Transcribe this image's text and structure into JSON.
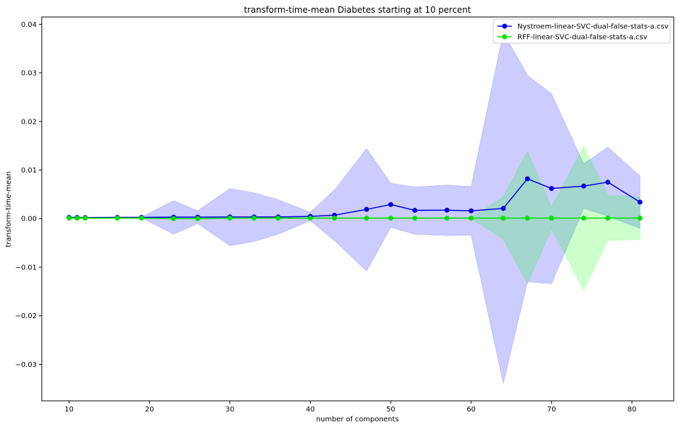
{
  "chart_data": {
    "type": "line",
    "title": "transform-time-mean Diabetes starting at 10 percent",
    "xlabel": "number of components",
    "ylabel": "transform-time-mean",
    "xlim": [
      6.6,
      85.2
    ],
    "ylim": [
      -0.0375,
      0.0415
    ],
    "xticks": [
      10,
      20,
      30,
      40,
      50,
      60,
      70,
      80
    ],
    "xtick_labels": [
      "10",
      "20",
      "30",
      "40",
      "50",
      "60",
      "70",
      "80"
    ],
    "yticks": [
      -0.03,
      -0.02,
      -0.01,
      0.0,
      0.01,
      0.02,
      0.03,
      0.04
    ],
    "ytick_labels": [
      "−0.03",
      "−0.02",
      "−0.01",
      "0.00",
      "0.01",
      "0.02",
      "0.03",
      "0.04"
    ],
    "grid": false,
    "legend_position": "top-right",
    "series": [
      {
        "name": "Nystroem-linear-SVC-dual-false-stats-a.csv",
        "color": "#0000e0",
        "band_color": "#0000ff",
        "x": [
          10,
          11,
          12,
          16,
          19,
          23,
          26,
          30,
          33,
          36,
          40,
          43,
          47,
          50,
          53,
          57,
          60,
          64,
          67,
          70,
          74,
          77,
          81
        ],
        "y": [
          0.00025,
          0.00025,
          0.00022,
          0.00025,
          0.00025,
          0.0003,
          0.0003,
          0.00035,
          0.00035,
          0.00035,
          0.00045,
          0.0007,
          0.0019,
          0.0029,
          0.0017,
          0.00175,
          0.0016,
          0.0021,
          0.0082,
          0.0062,
          0.0067,
          0.0075,
          0.0034
        ],
        "y_lower": [
          0.0002,
          0.0002,
          0.0002,
          0.0002,
          0.0002,
          -0.0032,
          -0.001,
          -0.0056,
          -0.0047,
          -0.0032,
          -0.0004,
          -0.0045,
          -0.0108,
          -0.0018,
          -0.0032,
          -0.0035,
          -0.0034,
          -0.0339,
          -0.013,
          -0.0134,
          0.0021,
          0.0005,
          -0.002
        ],
        "y_upper": [
          0.0003,
          0.0003,
          0.0003,
          0.0003,
          0.0003,
          0.0037,
          0.0016,
          0.0062,
          0.0053,
          0.0039,
          0.0013,
          0.0059,
          0.0144,
          0.0073,
          0.0065,
          0.0069,
          0.0066,
          0.0383,
          0.0295,
          0.0257,
          0.0113,
          0.0147,
          0.0088
        ]
      },
      {
        "name": "RFF-linear-SVC-dual-false-stats-a.csv",
        "color": "#00e000",
        "band_color": "#00ff00",
        "x": [
          10,
          11,
          12,
          16,
          19,
          23,
          26,
          30,
          33,
          36,
          40,
          43,
          47,
          50,
          53,
          57,
          60,
          64,
          67,
          70,
          74,
          77,
          81
        ],
        "y": [
          0.0001,
          0.0001,
          0.0001,
          0.0001,
          0.0001,
          0.0,
          0.0,
          0.0001,
          0.0001,
          0.0001,
          0.0001,
          0.0001,
          0.0001,
          0.0001,
          0.0001,
          0.0001,
          0.0001,
          0.0001,
          0.0001,
          0.0001,
          0.0001,
          0.0001,
          0.0001
        ],
        "y_lower": [
          0.0,
          0.0,
          0.0,
          0.0,
          0.0,
          -0.0001,
          -0.0001,
          0.0,
          0.0,
          0.0,
          0.0,
          0.0,
          0.0,
          0.0,
          0.0,
          0.0,
          0.0,
          -0.0042,
          -0.0134,
          -0.0021,
          -0.0147,
          -0.0045,
          -0.0043
        ],
        "y_upper": [
          0.0002,
          0.0002,
          0.0002,
          0.0002,
          0.0002,
          0.0001,
          0.0001,
          0.0002,
          0.0002,
          0.0002,
          0.0002,
          0.0002,
          0.0002,
          0.0002,
          0.0002,
          0.0002,
          0.0002,
          0.0045,
          0.0138,
          0.0024,
          0.0149,
          0.0048,
          0.0045
        ]
      }
    ]
  }
}
